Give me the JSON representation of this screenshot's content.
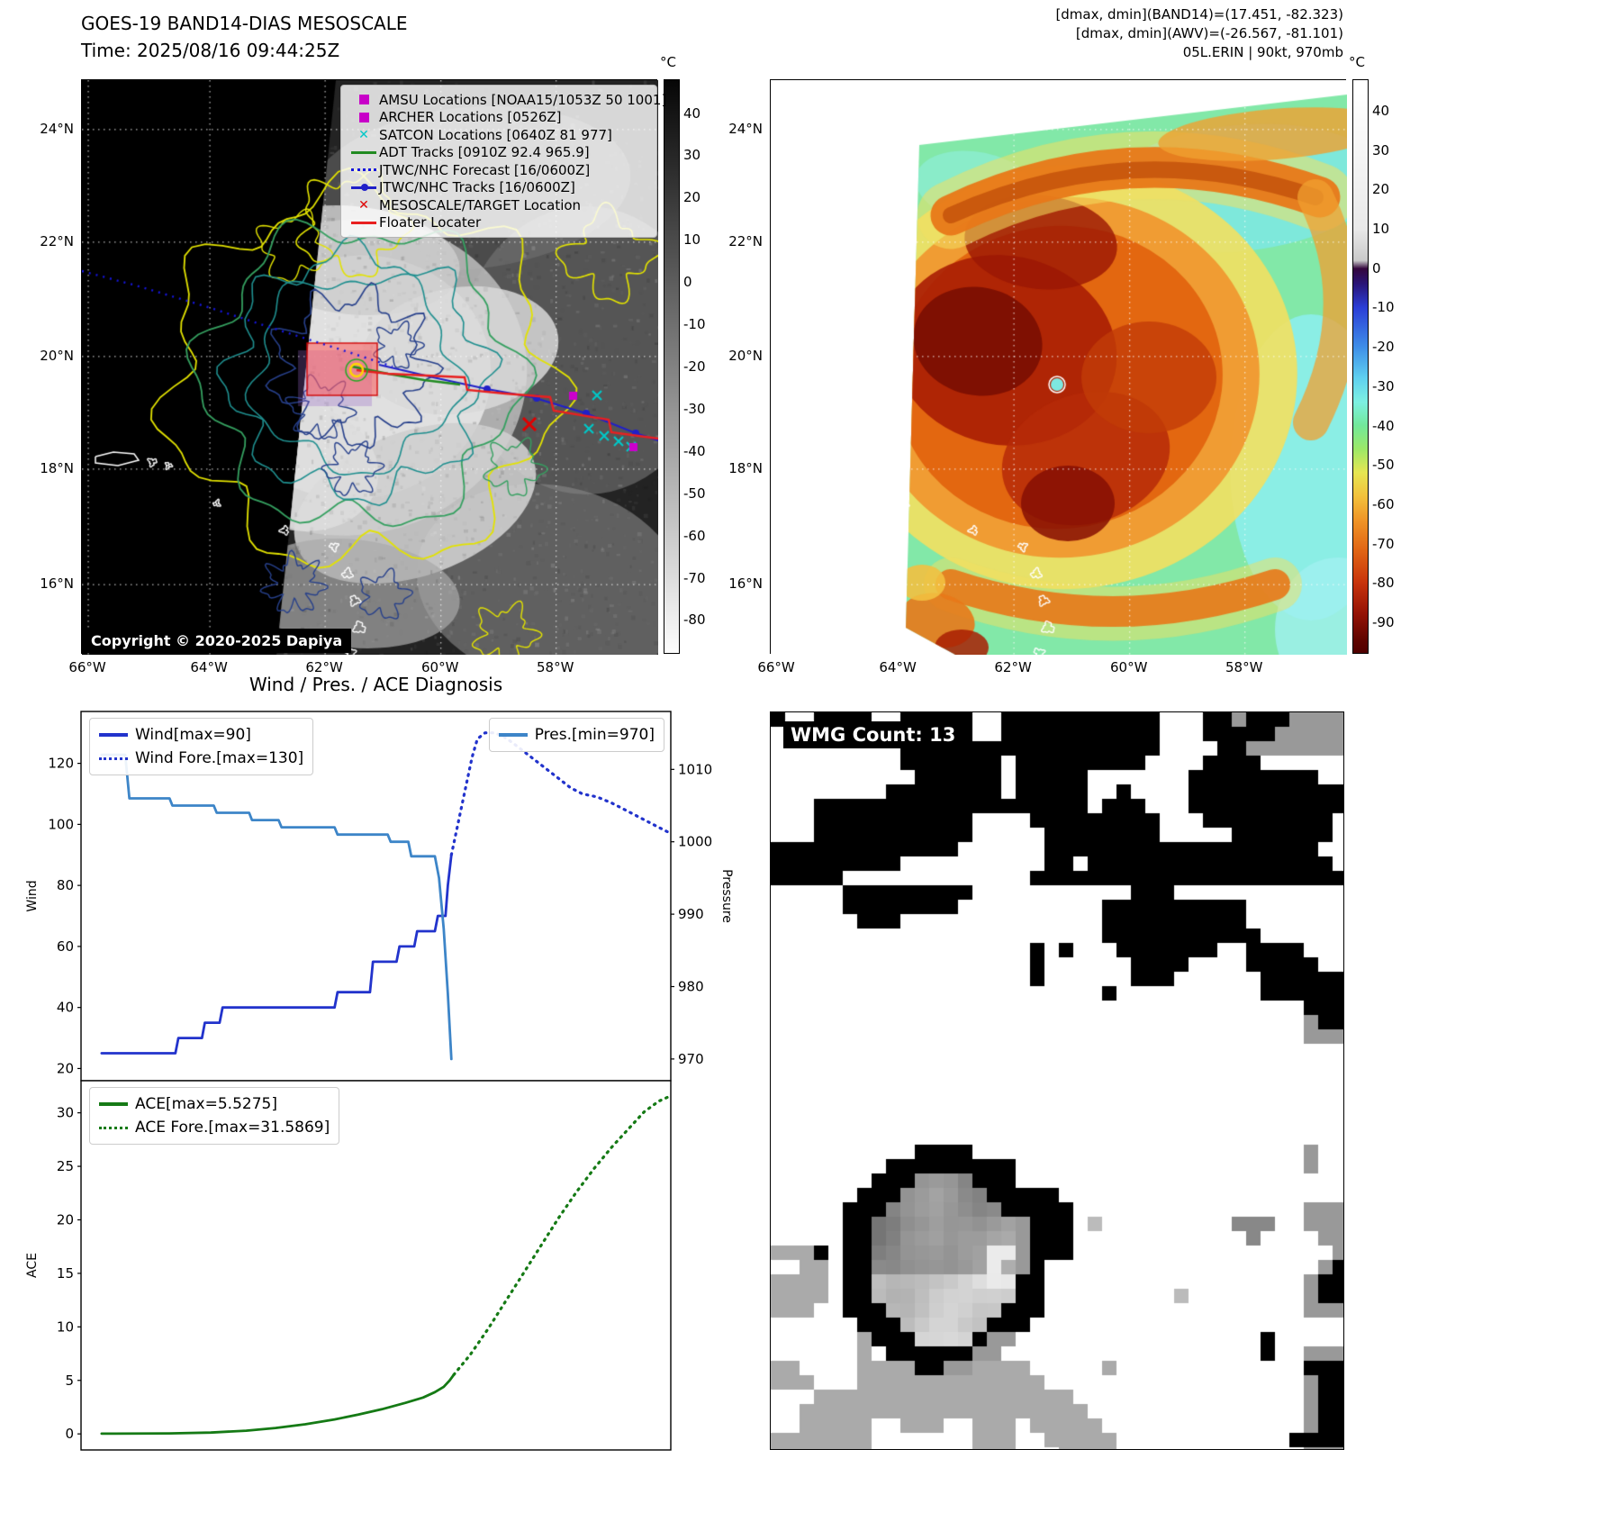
{
  "header": {
    "band14_range": "[dmax, dmin](BAND14)=(17.451, -82.323)",
    "awv_range": "[dmax, dmin](AWV)=(-26.567, -81.101)",
    "storm_status": "05L.ERIN | 90kt, 970mb"
  },
  "ir_panel": {
    "title": "GOES-19 BAND14-DIAS MESOSCALE",
    "time": "Time: 2025/08/16 09:44:25Z",
    "copyright": "Copyright © 2020-2025 Dapiya",
    "colorbar": {
      "label": "°C",
      "ticks": [
        40,
        30,
        20,
        10,
        0,
        -10,
        -20,
        -30,
        -40,
        -50,
        -60,
        -70,
        -80
      ]
    },
    "lat_ticks": [
      "24°N",
      "22°N",
      "20°N",
      "18°N",
      "16°N"
    ],
    "lon_ticks": [
      "66°W",
      "64°W",
      "62°W",
      "60°W",
      "58°W"
    ],
    "legend": [
      {
        "label": "AMSU Locations [NOAA15/1053Z 50 1001]",
        "marker": "square",
        "color": "#c800c8"
      },
      {
        "label": "ARCHER Locations [0526Z]",
        "marker": "square",
        "color": "#c800c8"
      },
      {
        "label": "SATCON Locations [0640Z 81 977]",
        "marker": "x",
        "color": "#00c8c8"
      },
      {
        "label": "ADT Tracks [0910Z 92.4 965.9]",
        "marker": "line",
        "color": "#228B22"
      },
      {
        "label": "JTWC/NHC Forecast [16/0600Z]",
        "marker": "dotted",
        "color": "#1515dd"
      },
      {
        "label": "JTWC/NHC Tracks [16/0600Z]",
        "marker": "line-dot",
        "color": "#2020c8"
      },
      {
        "label": "MESOSCALE/TARGET Location",
        "marker": "x",
        "color": "#e00000"
      },
      {
        "label": "Floater Locater",
        "marker": "line",
        "color": "#e82020"
      }
    ]
  },
  "awv_panel": {
    "colorbar": {
      "label": "°C",
      "ticks": [
        40,
        30,
        20,
        10,
        0,
        -10,
        -20,
        -30,
        -40,
        -50,
        -60,
        -70,
        -80,
        -90
      ]
    },
    "lat_ticks": [
      "24°N",
      "22°N",
      "20°N",
      "18°N",
      "16°N"
    ],
    "lon_ticks": [
      "66°W",
      "64°W",
      "62°W",
      "60°W",
      "58°W"
    ]
  },
  "wmg_panel": {
    "count_label": "WMG Count: 13"
  },
  "colors": {
    "wind": "#2233cc",
    "pressure": "#3d85c8",
    "ace": "#157a15",
    "grid_white": "#ffffff",
    "contour_yellow": "#e3e300",
    "contour_green": "#35a060",
    "contour_teal": "#1f8f8f",
    "contour_navy": "#27408b",
    "target_box_red": "#ff5a5a"
  },
  "chart_data": [
    {
      "type": "line",
      "title": "Wind / Pres. / ACE Diagnosis",
      "ylabel": "Wind",
      "ylabel_right": "Pressure",
      "ylim": [
        16,
        137
      ],
      "ylim_right": [
        967,
        1018
      ],
      "yticks": [
        20,
        40,
        60,
        80,
        100,
        120
      ],
      "yticks_right": [
        970,
        980,
        990,
        1000,
        1010
      ],
      "grid": false,
      "series": [
        {
          "name": "Wind[max=90]",
          "color": "#2233cc",
          "dash": "solid",
          "axis": "left",
          "legend": "left",
          "points": [
            [
              0.035,
              25
            ],
            [
              0.16,
              25
            ],
            [
              0.165,
              30
            ],
            [
              0.205,
              30
            ],
            [
              0.21,
              35
            ],
            [
              0.235,
              35
            ],
            [
              0.24,
              40
            ],
            [
              0.43,
              40
            ],
            [
              0.435,
              45
            ],
            [
              0.49,
              45
            ],
            [
              0.495,
              55
            ],
            [
              0.535,
              55
            ],
            [
              0.54,
              60
            ],
            [
              0.565,
              60
            ],
            [
              0.57,
              65
            ],
            [
              0.6,
              65
            ],
            [
              0.605,
              70
            ],
            [
              0.618,
              70
            ],
            [
              0.622,
              80
            ],
            [
              0.628,
              90
            ]
          ]
        },
        {
          "name": "Wind Fore.[max=130]",
          "color": "#2233cc",
          "dash": "dotted",
          "axis": "left",
          "legend": "left",
          "points": [
            [
              0.628,
              90
            ],
            [
              0.64,
              101
            ],
            [
              0.652,
              112
            ],
            [
              0.663,
              122
            ],
            [
              0.672,
              128
            ],
            [
              0.685,
              130
            ],
            [
              0.7,
              130
            ],
            [
              0.715,
              129
            ],
            [
              0.73,
              127
            ],
            [
              0.75,
              124
            ],
            [
              0.77,
              121
            ],
            [
              0.79,
              118
            ],
            [
              0.81,
              115
            ],
            [
              0.83,
              112
            ],
            [
              0.85,
              110
            ],
            [
              0.875,
              109
            ],
            [
              0.9,
              107
            ],
            [
              0.92,
              105
            ],
            [
              0.94,
              103
            ],
            [
              0.96,
              101
            ],
            [
              0.98,
              99
            ],
            [
              1.0,
              97
            ]
          ]
        },
        {
          "name": "Pres.[min=970]",
          "color": "#3d85c8",
          "dash": "solid",
          "axis": "right",
          "legend": "right",
          "points": [
            [
              0.035,
              1012
            ],
            [
              0.075,
              1012
            ],
            [
              0.082,
              1006
            ],
            [
              0.15,
              1006
            ],
            [
              0.155,
              1005
            ],
            [
              0.225,
              1005
            ],
            [
              0.23,
              1004
            ],
            [
              0.285,
              1004
            ],
            [
              0.29,
              1003
            ],
            [
              0.335,
              1003
            ],
            [
              0.34,
              1002
            ],
            [
              0.43,
              1002
            ],
            [
              0.435,
              1001
            ],
            [
              0.52,
              1001
            ],
            [
              0.525,
              1000
            ],
            [
              0.555,
              1000
            ],
            [
              0.56,
              998
            ],
            [
              0.6,
              998
            ],
            [
              0.607,
              995
            ],
            [
              0.615,
              988
            ],
            [
              0.622,
              979
            ],
            [
              0.628,
              970
            ]
          ]
        }
      ]
    },
    {
      "type": "line",
      "title": "",
      "ylabel": "ACE",
      "ylim": [
        -1.5,
        33
      ],
      "yticks": [
        0,
        5,
        10,
        15,
        20,
        25,
        30
      ],
      "grid": false,
      "series": [
        {
          "name": "ACE[max=5.5275]",
          "color": "#157a15",
          "dash": "solid",
          "axis": "left",
          "legend": "left",
          "points": [
            [
              0.035,
              0.02
            ],
            [
              0.15,
              0.05
            ],
            [
              0.22,
              0.12
            ],
            [
              0.28,
              0.3
            ],
            [
              0.33,
              0.55
            ],
            [
              0.38,
              0.9
            ],
            [
              0.43,
              1.35
            ],
            [
              0.47,
              1.8
            ],
            [
              0.51,
              2.3
            ],
            [
              0.55,
              2.9
            ],
            [
              0.58,
              3.4
            ],
            [
              0.6,
              3.9
            ],
            [
              0.615,
              4.4
            ],
            [
              0.625,
              5.0
            ],
            [
              0.632,
              5.53
            ]
          ]
        },
        {
          "name": "ACE Fore.[max=31.5869]",
          "color": "#157a15",
          "dash": "dotted",
          "axis": "left",
          "legend": "left",
          "points": [
            [
              0.632,
              5.53
            ],
            [
              0.66,
              7.4
            ],
            [
              0.69,
              9.8
            ],
            [
              0.72,
              12.4
            ],
            [
              0.75,
              15.0
            ],
            [
              0.78,
              17.6
            ],
            [
              0.81,
              20.2
            ],
            [
              0.84,
              22.6
            ],
            [
              0.87,
              24.8
            ],
            [
              0.9,
              26.8
            ],
            [
              0.93,
              28.6
            ],
            [
              0.955,
              30.1
            ],
            [
              0.98,
              31.1
            ],
            [
              1.0,
              31.59
            ]
          ]
        }
      ]
    }
  ]
}
